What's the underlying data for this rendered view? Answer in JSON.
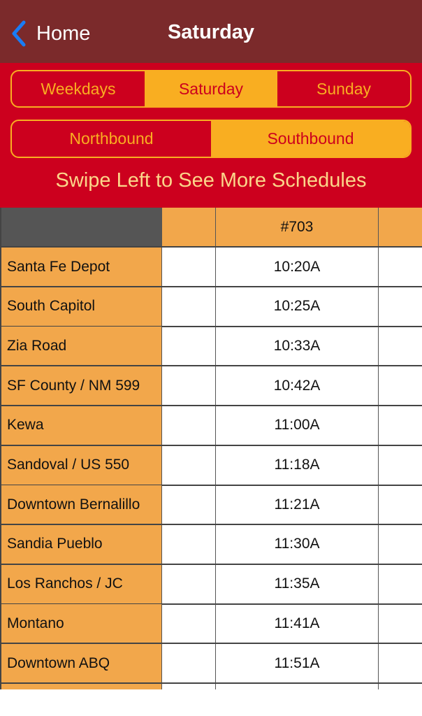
{
  "nav": {
    "back_label": "Home",
    "title": "Saturday",
    "back_color": "#1a7cf5"
  },
  "day_tabs": [
    {
      "label": "Weekdays",
      "selected": false
    },
    {
      "label": "Saturday",
      "selected": true
    },
    {
      "label": "Sunday",
      "selected": false
    }
  ],
  "direction_tabs": [
    {
      "label": "Northbound",
      "selected": false
    },
    {
      "label": "Southbound",
      "selected": true
    }
  ],
  "hint": "Swipe Left to See More Schedules",
  "table": {
    "headers": [
      "",
      "",
      "#703",
      ""
    ],
    "rows": [
      {
        "stop": "Santa Fe Depot",
        "time": "10:20A"
      },
      {
        "stop": "South Capitol",
        "time": "10:25A"
      },
      {
        "stop": "Zia Road",
        "time": "10:33A"
      },
      {
        "stop": "SF County / NM 599",
        "time": "10:42A"
      },
      {
        "stop": "Kewa",
        "time": "11:00A"
      },
      {
        "stop": "Sandoval / US 550",
        "time": "11:18A"
      },
      {
        "stop": "Downtown Bernalillo",
        "time": "11:21A"
      },
      {
        "stop": "Sandia Pueblo",
        "time": "11:30A"
      },
      {
        "stop": "Los Ranchos / JC",
        "time": "11:35A"
      },
      {
        "stop": "Montano",
        "time": "11:41A"
      },
      {
        "stop": "Downtown ABQ",
        "time": "11:51A"
      }
    ]
  }
}
